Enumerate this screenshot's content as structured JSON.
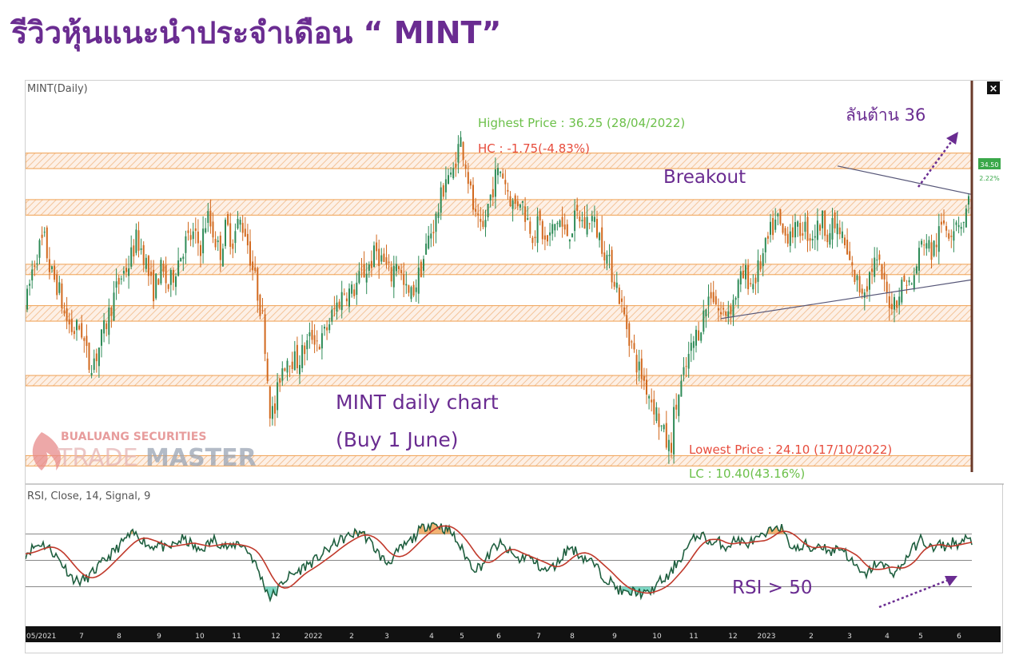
{
  "page": {
    "title": "รีวิวหุ้นแนะนำประจำเดือน “ MINT”"
  },
  "chart_data": {
    "type": "candlestick",
    "symbol_label": "MINT(Daily)",
    "price_ylim": [
      22.8,
      38.4
    ],
    "current_price": "34.50",
    "current_change": "2.22%",
    "x_ticks": [
      "05/2021",
      "7",
      "8",
      "9",
      "10",
      "11",
      "12",
      "2022",
      "2",
      "3",
      "4",
      "5",
      "6",
      "7",
      "8",
      "9",
      "10",
      "11",
      "12",
      "2023",
      "2",
      "3",
      "4",
      "5",
      "6"
    ],
    "price_path": [
      [
        0,
        29.8
      ],
      [
        8,
        31.2
      ],
      [
        14,
        31.8
      ],
      [
        22,
        32.3
      ],
      [
        30,
        31.0
      ],
      [
        40,
        30.4
      ],
      [
        48,
        29.3
      ],
      [
        58,
        28.7
      ],
      [
        68,
        28.9
      ],
      [
        78,
        27.4
      ],
      [
        88,
        27.8
      ],
      [
        98,
        28.8
      ],
      [
        108,
        29.9
      ],
      [
        118,
        30.8
      ],
      [
        128,
        31.3
      ],
      [
        138,
        32.3
      ],
      [
        148,
        31.6
      ],
      [
        158,
        30.2
      ],
      [
        168,
        31.1
      ],
      [
        178,
        30.4
      ],
      [
        188,
        31.3
      ],
      [
        198,
        32.1
      ],
      [
        208,
        32.4
      ],
      [
        218,
        32.0
      ],
      [
        226,
        33.2
      ],
      [
        234,
        32.5
      ],
      [
        242,
        31.7
      ],
      [
        250,
        32.8
      ],
      [
        258,
        32.2
      ],
      [
        266,
        33.0
      ],
      [
        274,
        32.6
      ],
      [
        280,
        31.6
      ],
      [
        290,
        30.1
      ],
      [
        296,
        29.1
      ],
      [
        300,
        27.8
      ],
      [
        304,
        25.8
      ],
      [
        310,
        25.4
      ],
      [
        318,
        27.2
      ],
      [
        328,
        27.8
      ],
      [
        338,
        27.5
      ],
      [
        348,
        28.0
      ],
      [
        358,
        28.6
      ],
      [
        368,
        28.2
      ],
      [
        378,
        29.0
      ],
      [
        388,
        29.7
      ],
      [
        398,
        30.3
      ],
      [
        408,
        30.2
      ],
      [
        418,
        30.8
      ],
      [
        428,
        31.2
      ],
      [
        438,
        31.8
      ],
      [
        448,
        31.3
      ],
      [
        456,
        30.8
      ],
      [
        464,
        31.6
      ],
      [
        472,
        30.4
      ],
      [
        480,
        30.0
      ],
      [
        488,
        30.6
      ],
      [
        496,
        31.4
      ],
      [
        504,
        32.4
      ],
      [
        512,
        33.0
      ],
      [
        520,
        34.0
      ],
      [
        526,
        34.9
      ],
      [
        532,
        34.5
      ],
      [
        538,
        35.6
      ],
      [
        544,
        36.1
      ],
      [
        550,
        35.2
      ],
      [
        556,
        34.0
      ],
      [
        562,
        33.0
      ],
      [
        570,
        32.4
      ],
      [
        578,
        33.6
      ],
      [
        586,
        34.6
      ],
      [
        594,
        35.0
      ],
      [
        602,
        34.2
      ],
      [
        610,
        33.5
      ],
      [
        618,
        33.9
      ],
      [
        626,
        33.1
      ],
      [
        634,
        32.5
      ],
      [
        642,
        32.9
      ],
      [
        650,
        32.0
      ],
      [
        658,
        32.6
      ],
      [
        666,
        33.1
      ],
      [
        674,
        32.4
      ],
      [
        682,
        32.7
      ],
      [
        690,
        33.2
      ],
      [
        698,
        32.8
      ],
      [
        706,
        33.2
      ],
      [
        714,
        32.6
      ],
      [
        722,
        32.0
      ],
      [
        730,
        31.2
      ],
      [
        738,
        30.6
      ],
      [
        746,
        29.5
      ],
      [
        754,
        28.6
      ],
      [
        762,
        27.6
      ],
      [
        770,
        27.0
      ],
      [
        778,
        26.4
      ],
      [
        786,
        25.8
      ],
      [
        794,
        25.0
      ],
      [
        802,
        24.3
      ],
      [
        806,
        24.1
      ],
      [
        810,
        25.4
      ],
      [
        816,
        26.2
      ],
      [
        822,
        26.9
      ],
      [
        828,
        27.6
      ],
      [
        836,
        28.4
      ],
      [
        844,
        29.0
      ],
      [
        850,
        29.6
      ],
      [
        856,
        30.3
      ],
      [
        862,
        29.9
      ],
      [
        868,
        29.3
      ],
      [
        876,
        29.5
      ],
      [
        884,
        29.8
      ],
      [
        892,
        30.6
      ],
      [
        900,
        30.9
      ],
      [
        908,
        30.5
      ],
      [
        916,
        31.1
      ],
      [
        924,
        31.8
      ],
      [
        932,
        32.6
      ],
      [
        940,
        33.0
      ],
      [
        948,
        32.3
      ],
      [
        956,
        32.7
      ],
      [
        964,
        32.5
      ],
      [
        972,
        32.8
      ],
      [
        980,
        32.4
      ],
      [
        988,
        32.6
      ],
      [
        996,
        33.0
      ],
      [
        1004,
        32.5
      ],
      [
        1012,
        32.8
      ],
      [
        1020,
        32.4
      ],
      [
        1028,
        31.5
      ],
      [
        1036,
        30.8
      ],
      [
        1044,
        30.3
      ],
      [
        1052,
        30.6
      ],
      [
        1060,
        31.4
      ],
      [
        1068,
        31.1
      ],
      [
        1076,
        30.1
      ],
      [
        1084,
        29.8
      ],
      [
        1092,
        30.2
      ],
      [
        1100,
        30.8
      ],
      [
        1108,
        30.4
      ],
      [
        1116,
        31.6
      ],
      [
        1124,
        32.4
      ],
      [
        1132,
        31.7
      ],
      [
        1140,
        32.3
      ],
      [
        1148,
        32.9
      ],
      [
        1156,
        32.6
      ],
      [
        1164,
        33.1
      ],
      [
        1172,
        32.9
      ],
      [
        1178,
        33.6
      ],
      [
        1184,
        34.5
      ]
    ],
    "rsi_path": [
      [
        0,
        55
      ],
      [
        10,
        60
      ],
      [
        20,
        63
      ],
      [
        30,
        59
      ],
      [
        40,
        52
      ],
      [
        50,
        44
      ],
      [
        58,
        37
      ],
      [
        66,
        34
      ],
      [
        76,
        36
      ],
      [
        86,
        42
      ],
      [
        96,
        48
      ],
      [
        106,
        54
      ],
      [
        116,
        60
      ],
      [
        126,
        67
      ],
      [
        136,
        70
      ],
      [
        146,
        66
      ],
      [
        156,
        60
      ],
      [
        166,
        63
      ],
      [
        176,
        58
      ],
      [
        186,
        62
      ],
      [
        196,
        66
      ],
      [
        206,
        63
      ],
      [
        216,
        57
      ],
      [
        226,
        61
      ],
      [
        236,
        66
      ],
      [
        246,
        62
      ],
      [
        256,
        59
      ],
      [
        266,
        64
      ],
      [
        274,
        60
      ],
      [
        282,
        54
      ],
      [
        290,
        44
      ],
      [
        298,
        32
      ],
      [
        306,
        22
      ],
      [
        314,
        26
      ],
      [
        322,
        34
      ],
      [
        330,
        38
      ],
      [
        340,
        41
      ],
      [
        350,
        46
      ],
      [
        360,
        49
      ],
      [
        370,
        54
      ],
      [
        380,
        59
      ],
      [
        390,
        64
      ],
      [
        400,
        67
      ],
      [
        410,
        70
      ],
      [
        420,
        72
      ],
      [
        428,
        66
      ],
      [
        436,
        60
      ],
      [
        444,
        53
      ],
      [
        452,
        48
      ],
      [
        460,
        52
      ],
      [
        468,
        58
      ],
      [
        476,
        62
      ],
      [
        484,
        66
      ],
      [
        492,
        72
      ],
      [
        500,
        76
      ],
      [
        508,
        78
      ],
      [
        516,
        77
      ],
      [
        524,
        74
      ],
      [
        532,
        72
      ],
      [
        540,
        64
      ],
      [
        548,
        56
      ],
      [
        556,
        48
      ],
      [
        562,
        44
      ],
      [
        570,
        46
      ],
      [
        578,
        52
      ],
      [
        586,
        60
      ],
      [
        594,
        62
      ],
      [
        602,
        58
      ],
      [
        610,
        54
      ],
      [
        618,
        50
      ],
      [
        626,
        54
      ],
      [
        634,
        50
      ],
      [
        642,
        46
      ],
      [
        650,
        42
      ],
      [
        658,
        44
      ],
      [
        666,
        48
      ],
      [
        674,
        56
      ],
      [
        682,
        60
      ],
      [
        690,
        56
      ],
      [
        698,
        52
      ],
      [
        706,
        50
      ],
      [
        714,
        45
      ],
      [
        722,
        38
      ],
      [
        730,
        35
      ],
      [
        738,
        30
      ],
      [
        746,
        26
      ],
      [
        754,
        24
      ],
      [
        762,
        27
      ],
      [
        770,
        25
      ],
      [
        778,
        24
      ],
      [
        786,
        29
      ],
      [
        794,
        34
      ],
      [
        800,
        36
      ],
      [
        806,
        38
      ],
      [
        812,
        46
      ],
      [
        820,
        52
      ],
      [
        828,
        60
      ],
      [
        836,
        66
      ],
      [
        844,
        70
      ],
      [
        852,
        66
      ],
      [
        860,
        62
      ],
      [
        868,
        64
      ],
      [
        876,
        60
      ],
      [
        884,
        64
      ],
      [
        892,
        66
      ],
      [
        900,
        62
      ],
      [
        908,
        64
      ],
      [
        916,
        66
      ],
      [
        924,
        68
      ],
      [
        932,
        72
      ],
      [
        940,
        78
      ],
      [
        946,
        74
      ],
      [
        952,
        66
      ],
      [
        960,
        60
      ],
      [
        968,
        58
      ],
      [
        976,
        62
      ],
      [
        984,
        58
      ],
      [
        992,
        62
      ],
      [
        1000,
        60
      ],
      [
        1008,
        56
      ],
      [
        1016,
        60
      ],
      [
        1024,
        58
      ],
      [
        1032,
        50
      ],
      [
        1040,
        44
      ],
      [
        1048,
        38
      ],
      [
        1056,
        42
      ],
      [
        1064,
        48
      ],
      [
        1072,
        46
      ],
      [
        1080,
        44
      ],
      [
        1088,
        40
      ],
      [
        1096,
        46
      ],
      [
        1104,
        54
      ],
      [
        1112,
        60
      ],
      [
        1120,
        66
      ],
      [
        1128,
        62
      ],
      [
        1136,
        58
      ],
      [
        1144,
        62
      ],
      [
        1152,
        60
      ],
      [
        1160,
        64
      ],
      [
        1168,
        62
      ],
      [
        1176,
        66
      ],
      [
        1184,
        64
      ]
    ],
    "rsi_label": "RSI, Close, 14, Signal, 9",
    "rsi_ylim": [
      0,
      100
    ],
    "rsi_levels": [
      70,
      50,
      30
    ],
    "support_resistance_zones": [
      [
        35.6,
        35.0
      ],
      [
        33.8,
        33.2
      ],
      [
        31.3,
        30.9
      ],
      [
        29.7,
        29.1
      ],
      [
        27.0,
        26.6
      ],
      [
        23.9,
        23.5
      ]
    ],
    "trendline_points": [
      [
        [
          870,
          29.2
        ],
        [
          1184,
          30.7
        ]
      ],
      [
        [
          1016,
          35.1
        ],
        [
          1184,
          34.0
        ]
      ]
    ],
    "annotations": {
      "highest": "Highest Price : 36.25 (28/04/2022)",
      "hc": "HC : -1.75(-4.83%)",
      "lowest": "Lowest Price : 24.10 (17/10/2022)",
      "lc": "LC : 10.40(43.16%)",
      "breakout": "Breakout",
      "target": "ลันต้าน 36",
      "daily_chart": "MINT daily chart",
      "buy_date": "(Buy 1 June)",
      "rsi_note": "RSI > 50",
      "watermark_top": "BUALUANG SECURITIES",
      "watermark_bottom_left": "TRADE",
      "watermark_bottom_right": "MASTER"
    },
    "colors": {
      "title": "#6a2c91",
      "up_candle": "#2e8b57",
      "down_candle": "#d2691e",
      "rsi_line": "#1f5f3f",
      "rsi_signal": "#c0392b",
      "zone": "#f0a050",
      "annotation_purple": "#6a2c91",
      "highest_green": "#6cc04a",
      "lowest_red": "#e74c3c"
    }
  }
}
